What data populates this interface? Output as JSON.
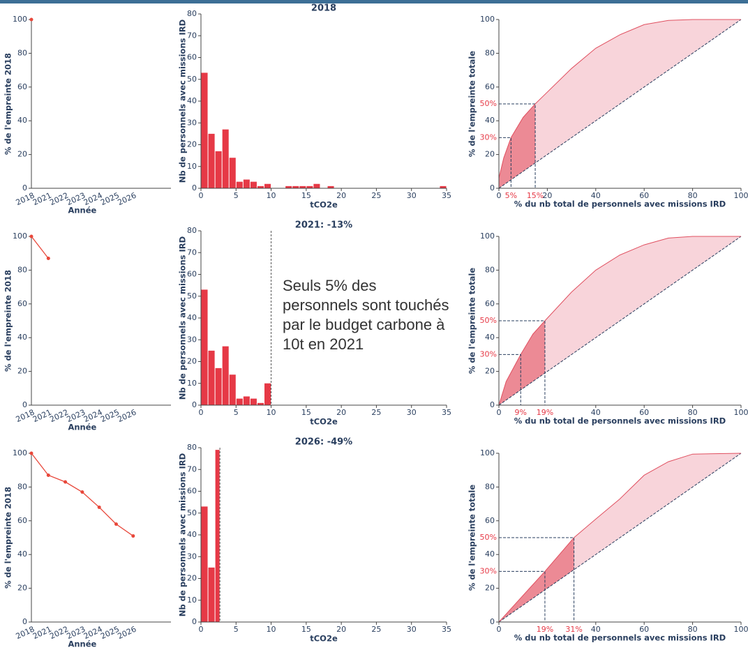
{
  "chart_data": [
    {
      "type": "line",
      "categories": [
        "2018",
        "2021",
        "2022",
        "2023",
        "2024",
        "2025",
        "2026"
      ],
      "values": [
        100,
        null,
        null,
        null,
        null,
        null,
        null
      ],
      "color": "#e8473a",
      "ylim": [
        0,
        100
      ],
      "yticks": [
        0,
        20,
        40,
        60,
        80,
        100
      ],
      "xlabel": "Année",
      "ylabel": "% de l'empreinte 2018"
    },
    {
      "type": "histogram",
      "title": "2018",
      "bins": [
        0,
        1,
        2,
        3,
        4,
        5,
        6,
        7,
        8,
        9,
        10,
        11,
        12,
        13,
        14,
        15,
        16,
        17,
        18,
        19,
        20,
        21,
        22,
        23,
        24,
        25,
        26,
        27,
        28,
        29,
        30,
        31,
        32,
        33,
        34,
        35
      ],
      "values": [
        53,
        25,
        17,
        27,
        14,
        3,
        4,
        3,
        1,
        2,
        0,
        0,
        1,
        1,
        1,
        1,
        2,
        0,
        1,
        0,
        0,
        0,
        0,
        0,
        0,
        0,
        0,
        0,
        0,
        0,
        0,
        0,
        0,
        0,
        1
      ],
      "color": "#e63946",
      "xlim": [
        0,
        35
      ],
      "xticks": [
        0,
        5,
        10,
        15,
        20,
        25,
        30,
        35
      ],
      "ylim": [
        0,
        80
      ],
      "yticks": [
        0,
        10,
        20,
        30,
        40,
        50,
        60,
        70,
        80
      ],
      "xlabel": "tCO2e",
      "ylabel": "Nb de personnels avec missions IRD"
    },
    {
      "type": "area",
      "x": [
        0,
        2,
        5,
        10,
        15,
        20,
        30,
        40,
        50,
        60,
        70,
        80,
        100
      ],
      "values": [
        6,
        18,
        30,
        42,
        50,
        57,
        71,
        83,
        91,
        97,
        99.5,
        100,
        100
      ],
      "color": "#e05060",
      "xlim": [
        0,
        100
      ],
      "ylim": [
        0,
        100
      ],
      "xticks": [
        0,
        20,
        40,
        60,
        80,
        100
      ],
      "yticks": [
        0,
        20,
        40,
        60,
        80,
        100
      ],
      "highlight_x": [
        {
          "value": 5,
          "label": "5%"
        },
        {
          "value": 15,
          "label": "15%"
        }
      ],
      "highlight_y": [
        {
          "value": 30,
          "label": "30%"
        },
        {
          "value": 50,
          "label": "50%"
        }
      ],
      "xlabel": "% du nb total de personnels avec missions IRD",
      "ylabel": "% de l'empreinte totale"
    },
    {
      "type": "line",
      "categories": [
        "2018",
        "2021",
        "2022",
        "2023",
        "2024",
        "2025",
        "2026"
      ],
      "values": [
        100,
        87,
        null,
        null,
        null,
        null,
        null
      ],
      "color": "#e8473a",
      "ylim": [
        0,
        100
      ],
      "yticks": [
        0,
        20,
        40,
        60,
        80,
        100
      ],
      "xlabel": "Année",
      "ylabel": "% de l'empreinte 2018"
    },
    {
      "type": "histogram",
      "title": "2021: -13%",
      "bins": [
        0,
        1,
        2,
        3,
        4,
        5,
        6,
        7,
        8,
        9,
        10
      ],
      "values": [
        53,
        25,
        17,
        27,
        14,
        3,
        4,
        3,
        1,
        10
      ],
      "threshold": 10,
      "annotation": "Seuls 5% des personnels sont touchés par le budget carbone à 10t en 2021",
      "color": "#e63946",
      "xlim": [
        0,
        35
      ],
      "xticks": [
        0,
        5,
        10,
        15,
        20,
        25,
        30,
        35
      ],
      "ylim": [
        0,
        80
      ],
      "yticks": [
        0,
        10,
        20,
        30,
        40,
        50,
        60,
        70,
        80
      ],
      "xlabel": "tCO2e",
      "ylabel": "Nb de personnels avec missions IRD"
    },
    {
      "type": "area",
      "x": [
        0,
        3,
        9,
        14,
        19,
        30,
        40,
        50,
        60,
        70,
        80,
        100
      ],
      "values": [
        0,
        14,
        30,
        42,
        50,
        67,
        80,
        89,
        95,
        99,
        100,
        100
      ],
      "color": "#e05060",
      "xlim": [
        0,
        100
      ],
      "ylim": [
        0,
        100
      ],
      "xticks": [
        0,
        40,
        60,
        80,
        100
      ],
      "yticks": [
        0,
        20,
        40,
        60,
        80,
        100
      ],
      "highlight_x": [
        {
          "value": 9,
          "label": "9%"
        },
        {
          "value": 19,
          "label": "19%"
        }
      ],
      "highlight_y": [
        {
          "value": 30,
          "label": "30%"
        },
        {
          "value": 50,
          "label": "50%"
        }
      ],
      "xlabel": "% du nb total de personnels avec missions IRD",
      "ylabel": "% de l'empreinte totale"
    },
    {
      "type": "line",
      "categories": [
        "2018",
        "2021",
        "2022",
        "2023",
        "2024",
        "2025",
        "2026"
      ],
      "values": [
        100,
        87,
        83,
        77,
        68,
        58,
        51
      ],
      "color": "#e8473a",
      "ylim": [
        0,
        100
      ],
      "yticks": [
        0,
        20,
        40,
        60,
        80,
        100
      ],
      "xlabel": "Année",
      "ylabel": "% de l'empreinte 2018"
    },
    {
      "type": "histogram",
      "title": "2026: -49%",
      "bins": [
        0,
        1,
        2,
        2.7
      ],
      "values": [
        53,
        25,
        79
      ],
      "threshold": 2.7,
      "color": "#e63946",
      "xlim": [
        0,
        35
      ],
      "xticks": [
        0,
        5,
        10,
        15,
        20,
        25,
        30,
        35
      ],
      "ylim": [
        0,
        80
      ],
      "yticks": [
        0,
        10,
        20,
        30,
        40,
        50,
        60,
        70,
        80
      ],
      "xlabel": "tCO2e",
      "ylabel": "Nb de personnels avec missions IRD"
    },
    {
      "type": "area",
      "x": [
        0,
        19,
        31,
        40,
        50,
        60,
        70,
        80,
        100
      ],
      "values": [
        0,
        30,
        50,
        61,
        73,
        87,
        95,
        99.5,
        100
      ],
      "color": "#e05060",
      "xlim": [
        0,
        100
      ],
      "ylim": [
        0,
        100
      ],
      "xticks": [
        0,
        40,
        60,
        80,
        100
      ],
      "yticks": [
        0,
        20,
        40,
        60,
        80,
        100
      ],
      "highlight_x": [
        {
          "value": 19,
          "label": "19%"
        },
        {
          "value": 31,
          "label": "31%"
        }
      ],
      "highlight_y": [
        {
          "value": 30,
          "label": "30%"
        },
        {
          "value": 50,
          "label": "50%"
        }
      ],
      "xlabel": "% du nb total de personnels avec missions IRD",
      "ylabel": "% de l'empreinte totale"
    }
  ]
}
